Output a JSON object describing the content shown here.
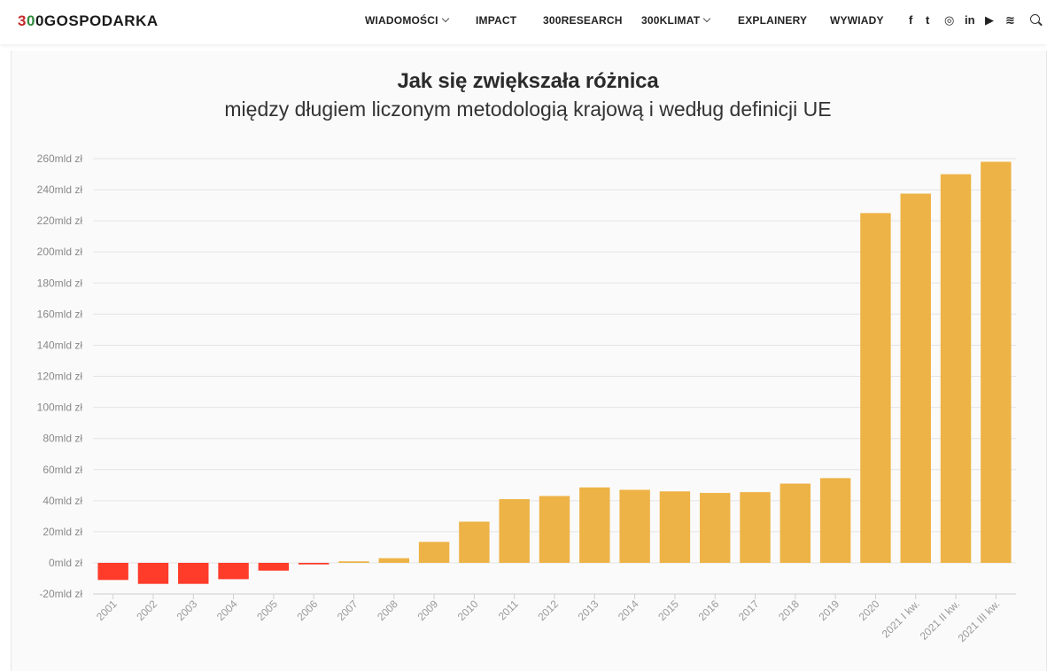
{
  "header": {
    "logo": {
      "digit_red": "3",
      "digit_green": "0",
      "digit_dark": "0",
      "text": "GOSPODARKA"
    },
    "nav": [
      {
        "label": "WIADOMOŚCI",
        "dropdown": true
      },
      {
        "label": "IMPACT",
        "dropdown": false
      },
      {
        "label": "300RESEARCH",
        "dropdown": false
      },
      {
        "label": "300KLIMAT",
        "dropdown": true
      },
      {
        "label": "EXPLAINERY",
        "dropdown": false
      },
      {
        "label": "WYWIADY",
        "dropdown": false
      }
    ],
    "social": [
      {
        "name": "facebook-icon",
        "glyph": "f"
      },
      {
        "name": "twitter-icon",
        "glyph": "t"
      },
      {
        "name": "instagram-icon",
        "glyph": "◎"
      },
      {
        "name": "linkedin-icon",
        "glyph": "in"
      },
      {
        "name": "youtube-icon",
        "glyph": "▶"
      },
      {
        "name": "rss-icon",
        "glyph": "≋"
      }
    ],
    "search_icon": "search-icon"
  },
  "colors": {
    "positive": "#EEB346",
    "negative": "#FF3B2A",
    "grid": "#E4E4E4",
    "tick": "#8a8a8a"
  },
  "chart_data": {
    "type": "bar",
    "title": "Jak się zwiększała różnica",
    "subtitle": "między długiem liczonym metodologią krajową i według definicji UE",
    "xlabel": "",
    "ylabel": "",
    "y_unit_suffix": "mld zł",
    "ylim": [
      -20,
      260
    ],
    "y_ticks": [
      -20,
      0,
      20,
      40,
      60,
      80,
      100,
      120,
      140,
      160,
      180,
      200,
      220,
      240,
      260
    ],
    "categories": [
      "2001",
      "2002",
      "2003",
      "2004",
      "2005",
      "2006",
      "2007",
      "2008",
      "2009",
      "2010",
      "2011",
      "2012",
      "2013",
      "2014",
      "2015",
      "2016",
      "2017",
      "2018",
      "2019",
      "2020",
      "2021 I kw.",
      "2021 II kw.",
      "2021 III kw."
    ],
    "values": [
      -11,
      -13.5,
      -13.5,
      -10.5,
      -5,
      -1,
      1,
      3,
      13.5,
      26.5,
      41,
      43,
      48.5,
      47,
      46,
      45,
      45.5,
      51,
      54.5,
      225,
      237.5,
      250,
      258
    ]
  }
}
